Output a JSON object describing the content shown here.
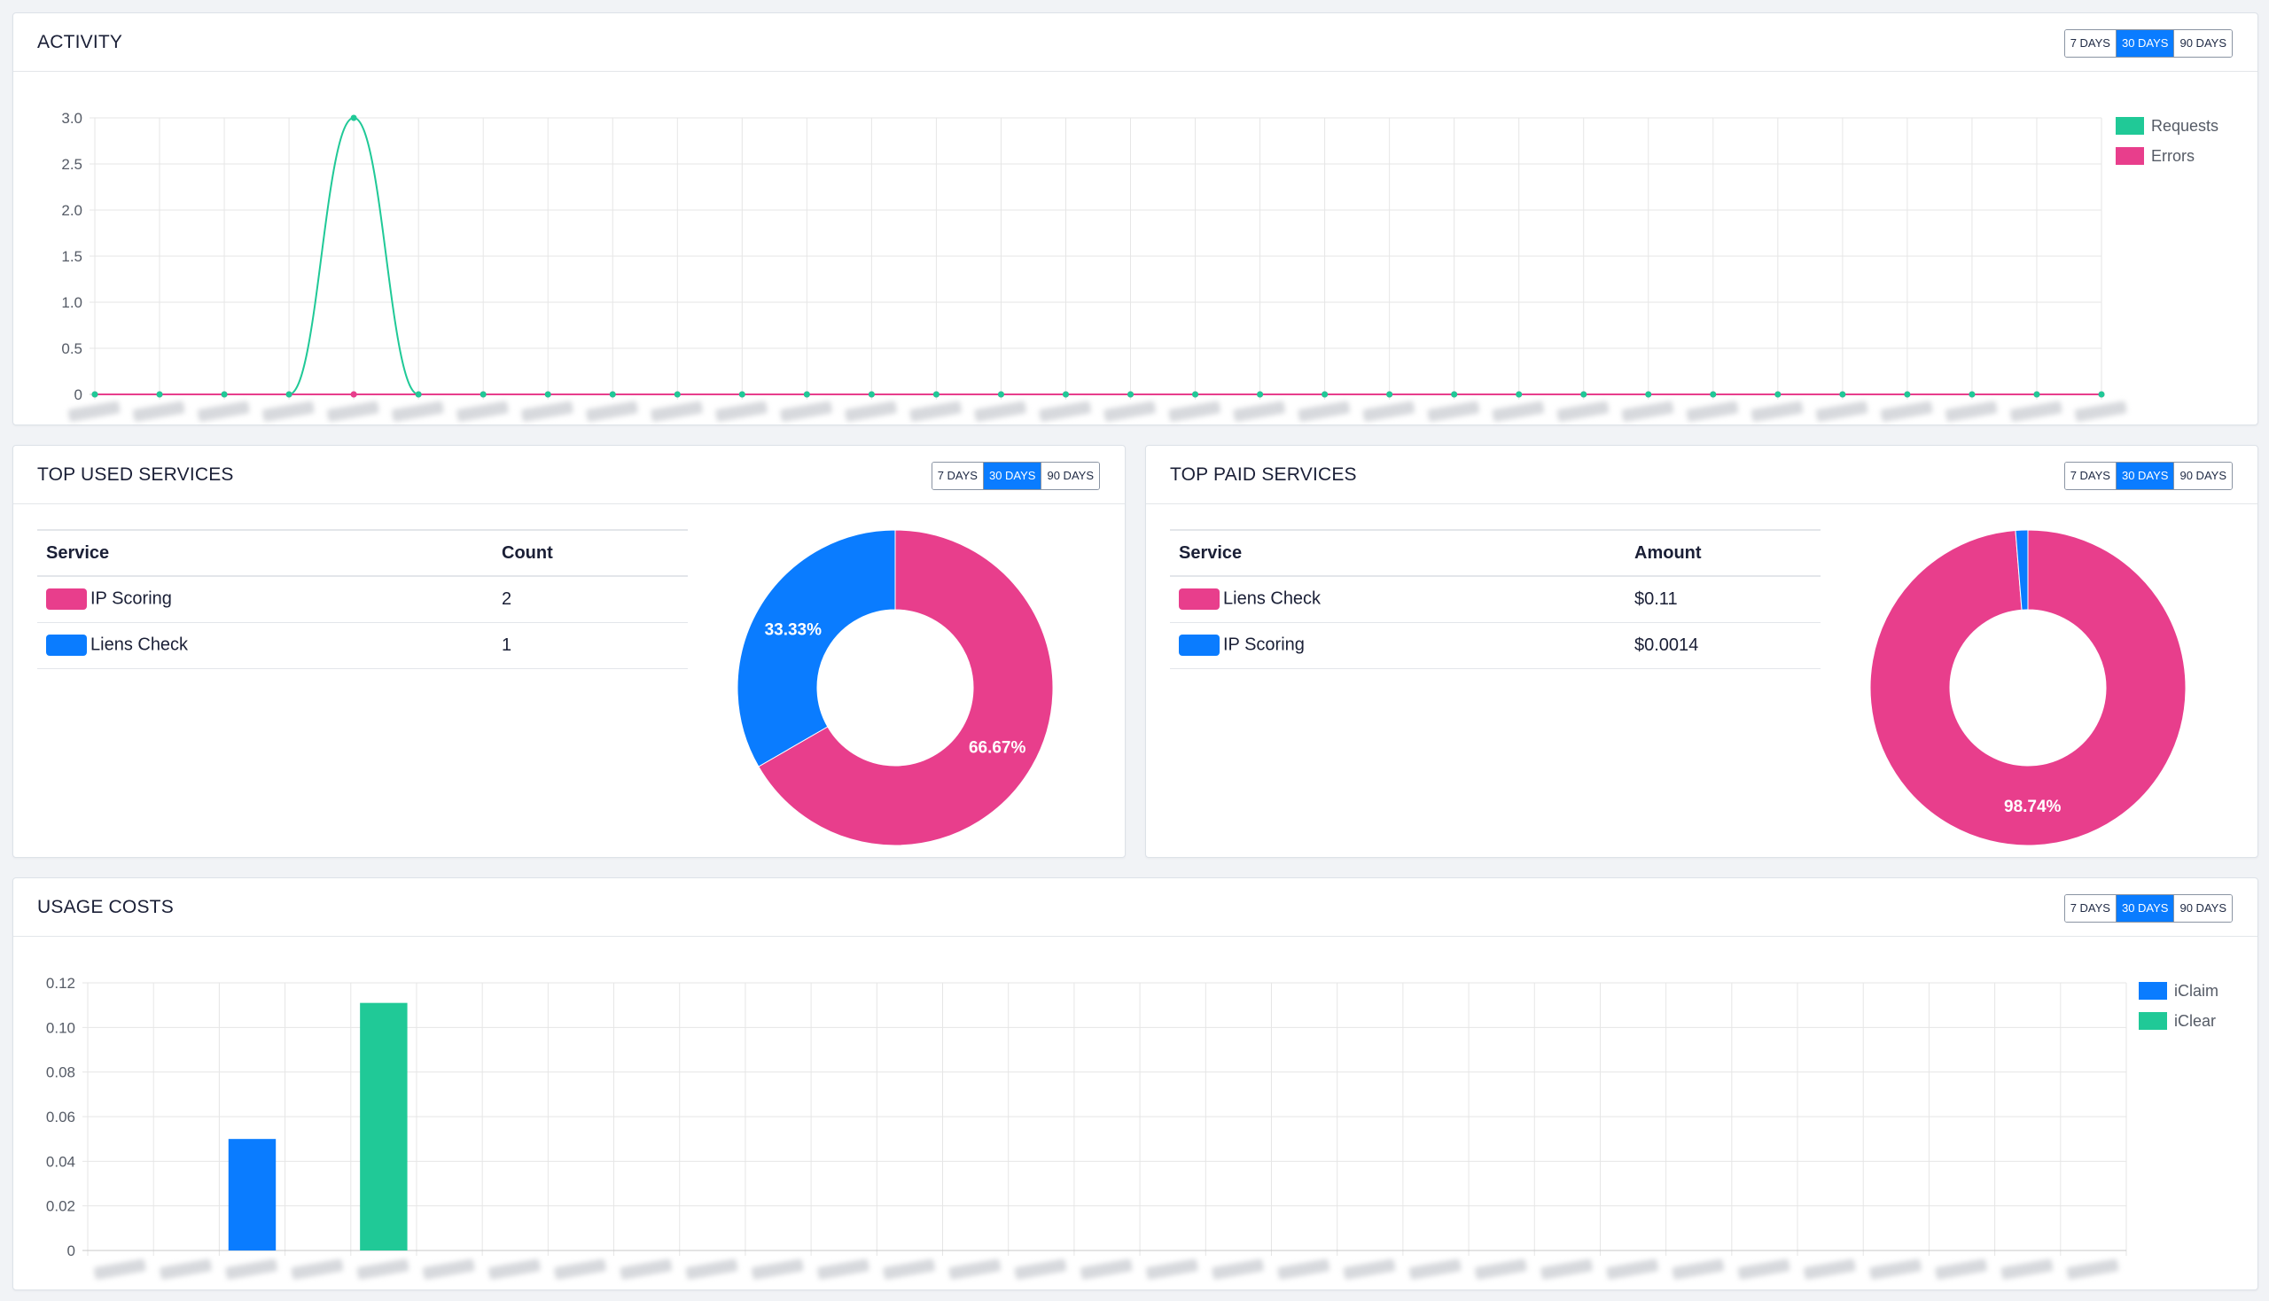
{
  "activity": {
    "title": "ACTIVITY",
    "range": [
      "7 DAYS",
      "30 DAYS",
      "90 DAYS"
    ],
    "active_range": "30 DAYS"
  },
  "top_used": {
    "title": "TOP USED SERVICES",
    "range": [
      "7 DAYS",
      "30 DAYS",
      "90 DAYS"
    ],
    "active_range": "30 DAYS",
    "columns": [
      "Service",
      "Count"
    ],
    "rows": [
      {
        "service": "IP Scoring",
        "value": "2",
        "color": "#e83e8c"
      },
      {
        "service": "Liens Check",
        "value": "1",
        "color": "#0a7cff"
      }
    ],
    "donut_labels": [
      "66.67%",
      "33.33%"
    ]
  },
  "top_paid": {
    "title": "TOP PAID SERVICES",
    "range": [
      "7 DAYS",
      "30 DAYS",
      "90 DAYS"
    ],
    "active_range": "30 DAYS",
    "columns": [
      "Service",
      "Amount"
    ],
    "rows": [
      {
        "service": "Liens Check",
        "value": "$0.11",
        "color": "#e83e8c"
      },
      {
        "service": "IP Scoring",
        "value": "$0.0014",
        "color": "#0a7cff"
      }
    ],
    "donut_labels": [
      "98.74%"
    ]
  },
  "usage_costs": {
    "title": "USAGE COSTS",
    "range": [
      "7 DAYS",
      "30 DAYS",
      "90 DAYS"
    ],
    "active_range": "30 DAYS"
  },
  "colors": {
    "requests": "#20c997",
    "errors": "#e83e8c",
    "iclaim": "#0a7cff",
    "iclear": "#20c997",
    "active_button": "#0a7cff"
  },
  "chart_data": [
    {
      "type": "line",
      "title": "ACTIVITY",
      "x": [
        "",
        "",
        "",
        "",
        "",
        "",
        "",
        "",
        "",
        "",
        "",
        "",
        "",
        "",
        "",
        "",
        "",
        "",
        "",
        "",
        "",
        "",
        "",
        "",
        "",
        "",
        "",
        "",
        "",
        "",
        "",
        ""
      ],
      "x_labels_blurred": true,
      "series": [
        {
          "name": "Requests",
          "color": "#20c997",
          "values": [
            0,
            0,
            0,
            0,
            3,
            0,
            0,
            0,
            0,
            0,
            0,
            0,
            0,
            0,
            0,
            0,
            0,
            0,
            0,
            0,
            0,
            0,
            0,
            0,
            0,
            0,
            0,
            0,
            0,
            0,
            0,
            0
          ]
        },
        {
          "name": "Errors",
          "color": "#e83e8c",
          "values": [
            0,
            0,
            0,
            0,
            0,
            0,
            0,
            0,
            0,
            0,
            0,
            0,
            0,
            0,
            0,
            0,
            0,
            0,
            0,
            0,
            0,
            0,
            0,
            0,
            0,
            0,
            0,
            0,
            0,
            0,
            0,
            0
          ]
        }
      ],
      "y_ticks": [
        "0",
        "0.5",
        "1.0",
        "1.5",
        "2.0",
        "2.5",
        "3.0"
      ],
      "ylim": [
        0,
        3
      ],
      "grid": true,
      "legend": "top-right"
    },
    {
      "type": "pie",
      "title": "TOP USED SERVICES",
      "categories": [
        "IP Scoring",
        "Liens Check"
      ],
      "values": [
        2,
        1
      ],
      "percent_labels": [
        "66.67%",
        "33.33%"
      ],
      "colors": [
        "#e83e8c",
        "#0a7cff"
      ],
      "donut": true
    },
    {
      "type": "pie",
      "title": "TOP PAID SERVICES",
      "categories": [
        "Liens Check",
        "IP Scoring"
      ],
      "values": [
        0.11,
        0.0014
      ],
      "percent_labels": [
        "98.74%",
        ""
      ],
      "colors": [
        "#e83e8c",
        "#0a7cff"
      ],
      "donut": true
    },
    {
      "type": "bar",
      "title": "USAGE COSTS",
      "x": [
        "",
        "",
        "",
        "",
        "",
        "",
        "",
        "",
        "",
        "",
        "",
        "",
        "",
        "",
        "",
        "",
        "",
        "",
        "",
        "",
        "",
        "",
        "",
        "",
        "",
        "",
        "",
        "",
        "",
        "",
        ""
      ],
      "x_labels_blurred": true,
      "series": [
        {
          "name": "iClaim",
          "color": "#0a7cff",
          "values": [
            0,
            0,
            0.05,
            0,
            0,
            0,
            0,
            0,
            0,
            0,
            0,
            0,
            0,
            0,
            0,
            0,
            0,
            0,
            0,
            0,
            0,
            0,
            0,
            0,
            0,
            0,
            0,
            0,
            0,
            0,
            0
          ]
        },
        {
          "name": "iClear",
          "color": "#20c997",
          "values": [
            0,
            0,
            0,
            0,
            0.111,
            0,
            0,
            0,
            0,
            0,
            0,
            0,
            0,
            0,
            0,
            0,
            0,
            0,
            0,
            0,
            0,
            0,
            0,
            0,
            0,
            0,
            0,
            0,
            0,
            0,
            0
          ]
        }
      ],
      "y_ticks": [
        "0",
        "0.02",
        "0.04",
        "0.06",
        "0.08",
        "0.10",
        "0.12"
      ],
      "ylim": [
        0,
        0.12
      ],
      "grid": true,
      "legend": "top-right"
    }
  ]
}
